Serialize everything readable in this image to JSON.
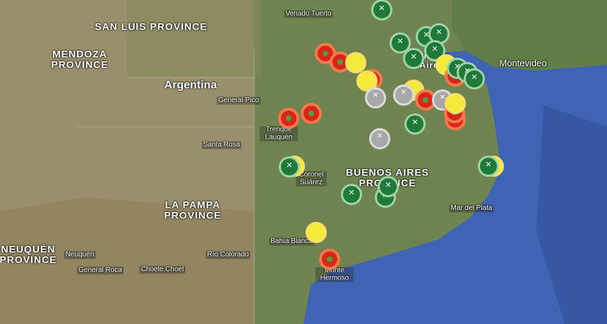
{
  "labels": {
    "san_luis": "SAN LUIS PROVINCE",
    "mendoza": "MENDOZA PROVINCE",
    "argentina": "Argentina",
    "general_pico": "General Pico",
    "venado_tuerto": "Venado Tuerto",
    "trenque_lauquen": "Trenque Lauquen",
    "santa_rosa": "Santa Rosa",
    "coronel_suarez": "Coronel Suárez",
    "buenos_aires_prov": "BUENOS AIRES PROVINCE",
    "buenos_aires_city": "Buenos Aires",
    "la_pampa": "LA PAMPA PROVINCE",
    "neuquen_prov": "NEUQUÉN PROVINCE",
    "neuquen": "Neuquén",
    "general_roca": "General Roca",
    "choele_choel": "Choele Choel",
    "rio_colorado": "Río Colorado",
    "bahia_blanca": "Bahía Blanca",
    "monte_hermoso": "Monte Hermoso",
    "mar_del_plata": "Mar del Plata",
    "montevideo": "Montevideo"
  },
  "marker_colors": {
    "green": "#1f7a3a",
    "red": "#d9261c",
    "yellow": "#f4ea3a",
    "grey": "#a8a8a8"
  },
  "colors": {
    "ocean": "#3f64b4",
    "land": "#7d8a5a",
    "land_west": "#9a8f6c"
  }
}
